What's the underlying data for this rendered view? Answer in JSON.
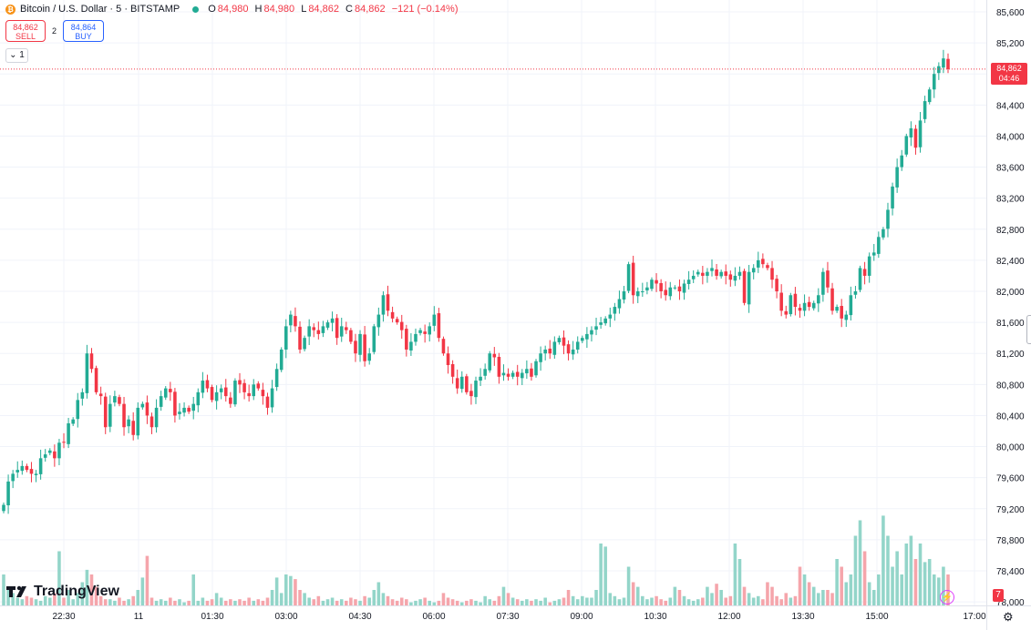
{
  "header": {
    "symbol_title": "Bitcoin / U.S. Dollar · 5 · BITSTAMP",
    "coin_glyph": "₿",
    "ohlc": [
      {
        "key": "O",
        "value": "84,980"
      },
      {
        "key": "H",
        "value": "84,980"
      },
      {
        "key": "L",
        "value": "84,862"
      },
      {
        "key": "C",
        "value": "84,862"
      }
    ],
    "change": "−121 (−0.14%)"
  },
  "trade": {
    "sell_price": "84,862",
    "sell_label": "SELL",
    "spread": "2",
    "buy_price": "84,864",
    "buy_label": "BUY"
  },
  "interval_toggle": "1",
  "logo_text": "TradingView",
  "last_price": {
    "value": "84,862",
    "countdown": "04:46"
  },
  "volume_badge": "7",
  "colors": {
    "up": "#22ab94",
    "down": "#f23645",
    "volume_up": "#93d5c9",
    "volume_down": "#f5a5ab",
    "grid": "#f0f3fa",
    "text": "#131722"
  },
  "chart_data": {
    "type": "candlestick",
    "series": [
      {
        "name": "Bitcoin / U.S. Dollar",
        "kind": "candlestick"
      },
      {
        "name": "Volume",
        "kind": "bar"
      }
    ],
    "y_ticks": [
      "85,600",
      "85,200",
      "84,800",
      "84,400",
      "84,000",
      "83,600",
      "83,200",
      "82,800",
      "82,400",
      "82,000",
      "81,600",
      "81,200",
      "80,800",
      "80,400",
      "80,000",
      "79,600",
      "79,200",
      "78,800",
      "78,400",
      "78,000"
    ],
    "x_ticks": [
      "22:30",
      "11",
      "01:30",
      "03:00",
      "04:30",
      "06:00",
      "07:30",
      "09:00",
      "10:30",
      "12:00",
      "13:30",
      "15:00",
      "17:00"
    ],
    "ylim": [
      77900,
      85750
    ],
    "last_price": 84862,
    "grid": true,
    "candles_close": [
      79250,
      79550,
      79650,
      79700,
      79750,
      79700,
      79650,
      79650,
      79850,
      79900,
      79950,
      79850,
      80050,
      80050,
      80300,
      80350,
      80600,
      80700,
      81200,
      81000,
      80700,
      80650,
      80250,
      80550,
      80650,
      80550,
      80250,
      80350,
      80150,
      80500,
      80550,
      80400,
      80250,
      80500,
      80650,
      80750,
      80700,
      80400,
      80450,
      80500,
      80450,
      80550,
      80700,
      80850,
      80750,
      80600,
      80700,
      80750,
      80650,
      80550,
      80850,
      80800,
      80700,
      80650,
      80800,
      80750,
      80650,
      80500,
      80750,
      81000,
      81250,
      81550,
      81700,
      81550,
      81250,
      81400,
      81550,
      81500,
      81450,
      81550,
      81600,
      81650,
      81400,
      81550,
      81500,
      81350,
      81200,
      81450,
      81100,
      81200,
      81550,
      81700,
      81950,
      81750,
      81650,
      81600,
      81500,
      81250,
      81350,
      81450,
      81500,
      81450,
      81550,
      81700,
      81400,
      81200,
      81050,
      80900,
      80750,
      80900,
      80700,
      80650,
      80850,
      80900,
      81000,
      81200,
      81150,
      80900,
      80950,
      80900,
      80950,
      80900,
      80950,
      81000,
      80900,
      81100,
      81200,
      81250,
      81200,
      81350,
      81400,
      81300,
      81200,
      81250,
      81350,
      81400,
      81450,
      81500,
      81550,
      81600,
      81650,
      81700,
      81800,
      81900,
      82000,
      82350,
      81950,
      82000,
      82000,
      82050,
      82150,
      82100,
      82000,
      81950,
      82050,
      82050,
      82000,
      82100,
      82150,
      82200,
      82250,
      82200,
      82250,
      82300,
      82200,
      82250,
      82200,
      82150,
      82200,
      82250,
      81850,
      82250,
      82300,
      82400,
      82350,
      82300,
      82150,
      82000,
      81750,
      81700,
      81950,
      81800,
      81750,
      81850,
      81800,
      81850,
      81950,
      82250,
      82050,
      81750,
      81800,
      81650,
      81700,
      81950,
      82000,
      82300,
      82200,
      82450,
      82500,
      82700,
      82800,
      83050,
      83350,
      83600,
      83750,
      84000,
      84100,
      83850,
      84200,
      84450,
      84600,
      84800,
      84900,
      85000,
      84862
    ],
    "volumes_relative": [
      0.2,
      0.1,
      0.08,
      0.05,
      0.04,
      0.06,
      0.05,
      0.04,
      0.03,
      0.06,
      0.05,
      0.08,
      0.35,
      0.05,
      0.1,
      0.04,
      0.08,
      0.15,
      0.23,
      0.2,
      0.12,
      0.06,
      0.04,
      0.04,
      0.03,
      0.05,
      0.03,
      0.04,
      0.06,
      0.1,
      0.18,
      0.32,
      0.05,
      0.03,
      0.04,
      0.03,
      0.05,
      0.03,
      0.04,
      0.02,
      0.03,
      0.2,
      0.03,
      0.05,
      0.03,
      0.04,
      0.08,
      0.05,
      0.03,
      0.04,
      0.03,
      0.04,
      0.03,
      0.05,
      0.03,
      0.04,
      0.03,
      0.05,
      0.1,
      0.18,
      0.08,
      0.2,
      0.19,
      0.17,
      0.1,
      0.08,
      0.05,
      0.04,
      0.06,
      0.03,
      0.04,
      0.05,
      0.03,
      0.04,
      0.03,
      0.05,
      0.04,
      0.03,
      0.06,
      0.05,
      0.1,
      0.15,
      0.08,
      0.06,
      0.04,
      0.03,
      0.05,
      0.04,
      0.02,
      0.03,
      0.04,
      0.05,
      0.03,
      0.02,
      0.03,
      0.08,
      0.05,
      0.04,
      0.03,
      0.02,
      0.03,
      0.04,
      0.03,
      0.02,
      0.06,
      0.04,
      0.03,
      0.06,
      0.12,
      0.08,
      0.05,
      0.04,
      0.03,
      0.04,
      0.03,
      0.04,
      0.03,
      0.05,
      0.02,
      0.03,
      0.04,
      0.05,
      0.1,
      0.06,
      0.04,
      0.06,
      0.05,
      0.05,
      0.1,
      0.4,
      0.38,
      0.08,
      0.06,
      0.04,
      0.05,
      0.25,
      0.15,
      0.12,
      0.06,
      0.04,
      0.05,
      0.06,
      0.04,
      0.03,
      0.05,
      0.12,
      0.1,
      0.06,
      0.04,
      0.03,
      0.04,
      0.05,
      0.12,
      0.08,
      0.14,
      0.1,
      0.05,
      0.06,
      0.4,
      0.3,
      0.12,
      0.08,
      0.05,
      0.06,
      0.04,
      0.15,
      0.12,
      0.06,
      0.04,
      0.08,
      0.05,
      0.06,
      0.25,
      0.2,
      0.15,
      0.12,
      0.08,
      0.1,
      0.1,
      0.08,
      0.3,
      0.25,
      0.15,
      0.2,
      0.45,
      0.55,
      0.35,
      0.15,
      0.1,
      0.2,
      0.58,
      0.45,
      0.25,
      0.35,
      0.2,
      0.4,
      0.45,
      0.3,
      0.4,
      0.28,
      0.3,
      0.2,
      0.18,
      0.25,
      0.2
    ]
  }
}
